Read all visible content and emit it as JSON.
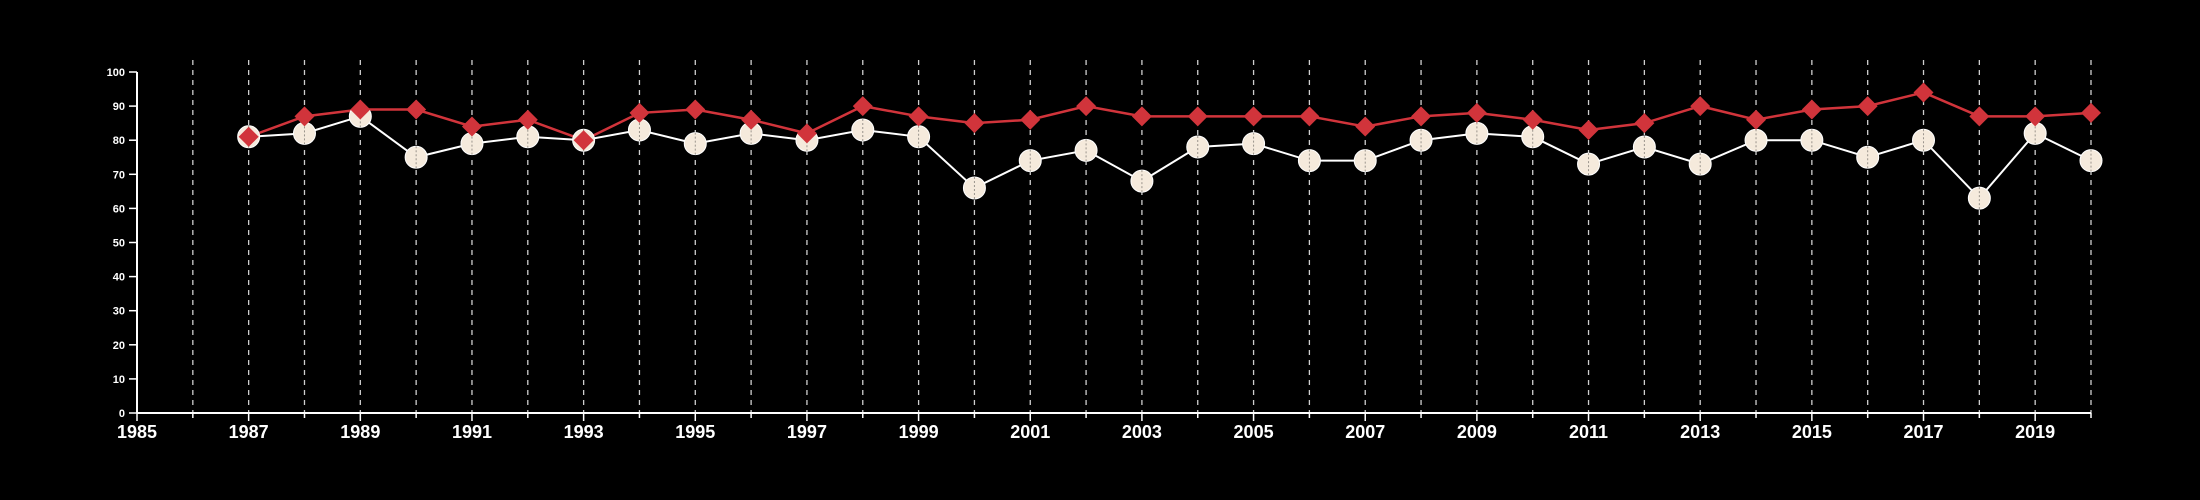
{
  "chart_data": {
    "type": "line",
    "title": "",
    "xlabel": "",
    "ylabel": "",
    "xlim": [
      1985,
      2020
    ],
    "ylim": [
      0,
      100
    ],
    "x_ticks": [
      1985,
      1987,
      1989,
      1991,
      1993,
      1995,
      1997,
      1999,
      2001,
      2003,
      2005,
      2007,
      2009,
      2011,
      2013,
      2015,
      2017,
      2019
    ],
    "y_ticks": [
      0,
      10,
      20,
      30,
      40,
      50,
      60,
      70,
      80,
      90,
      100
    ],
    "vertical_gridlines": "dashed, every year",
    "legend": "none",
    "x": [
      1987,
      1988,
      1989,
      1990,
      1991,
      1992,
      1993,
      1994,
      1995,
      1996,
      1997,
      1998,
      1999,
      2000,
      2001,
      2002,
      2003,
      2004,
      2005,
      2006,
      2007,
      2008,
      2009,
      2010,
      2011,
      2012,
      2013,
      2014,
      2015,
      2016,
      2017,
      2018,
      2019,
      2020
    ],
    "series": [
      {
        "marker": "diamond",
        "color": "#d1343b",
        "values": [
          81,
          87,
          89,
          89,
          84,
          86,
          80,
          88,
          89,
          86,
          82,
          90,
          87,
          85,
          86,
          90,
          87,
          87,
          87,
          87,
          84,
          87,
          88,
          86,
          83,
          85,
          90,
          86,
          89,
          90,
          94,
          87,
          87,
          88
        ]
      },
      {
        "marker": "circle",
        "color": "#f5eadc",
        "line_color": "#ffffff",
        "values": [
          81,
          82,
          87,
          75,
          79,
          81,
          80,
          83,
          79,
          82,
          80,
          83,
          81,
          66,
          74,
          77,
          68,
          78,
          79,
          74,
          74,
          80,
          82,
          81,
          73,
          78,
          73,
          80,
          80,
          75,
          80,
          63,
          82,
          74
        ]
      }
    ]
  }
}
